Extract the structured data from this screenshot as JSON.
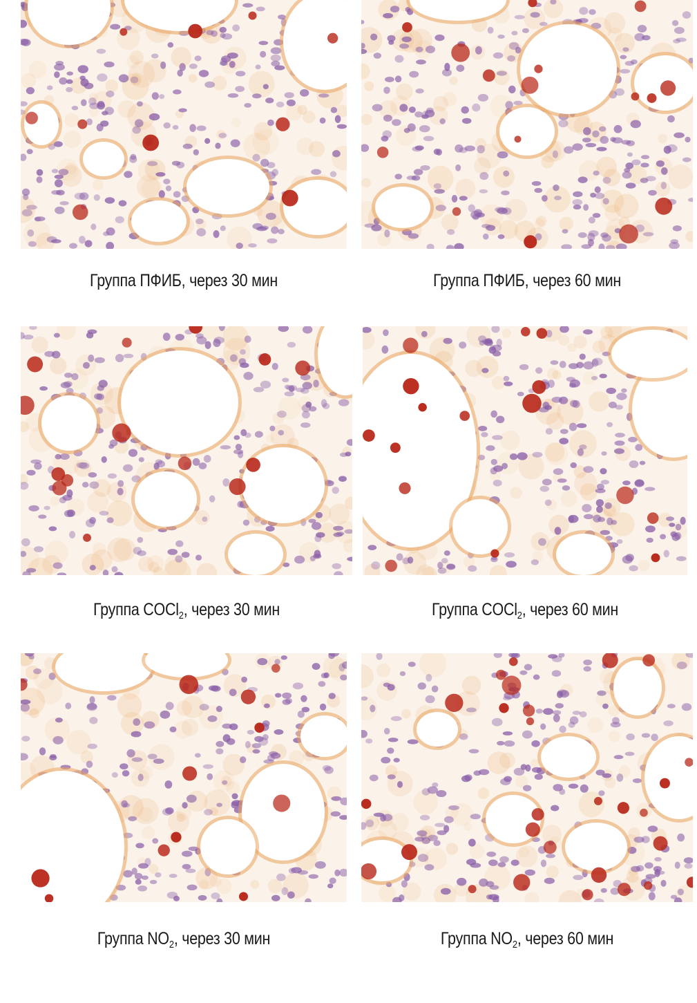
{
  "figure": {
    "panels": [
      {
        "caption_pre": "Группа ПФИБ, через 30 мин",
        "caption_sub": "",
        "caption_post": ""
      },
      {
        "caption_pre": "Группа ПФИБ, через 60 мин",
        "caption_sub": "",
        "caption_post": ""
      },
      {
        "caption_pre": "Группа COCl",
        "caption_sub": "2",
        "caption_post": ", через 30 мин"
      },
      {
        "caption_pre": "Группа COCl",
        "caption_sub": "2",
        "caption_post": ", через 60 мин"
      },
      {
        "caption_pre": "Группа NO",
        "caption_sub": "2",
        "caption_post": ", через 30 мин"
      },
      {
        "caption_pre": "Группа NO",
        "caption_sub": "2",
        "caption_post": ", через 60 мин"
      }
    ],
    "colors": {
      "background": "#fbf3ea",
      "nucleus": "#8a5fa8",
      "stain": "#b8281a",
      "stain_light": "#e9a45f",
      "lumen": "#ffffff"
    }
  }
}
